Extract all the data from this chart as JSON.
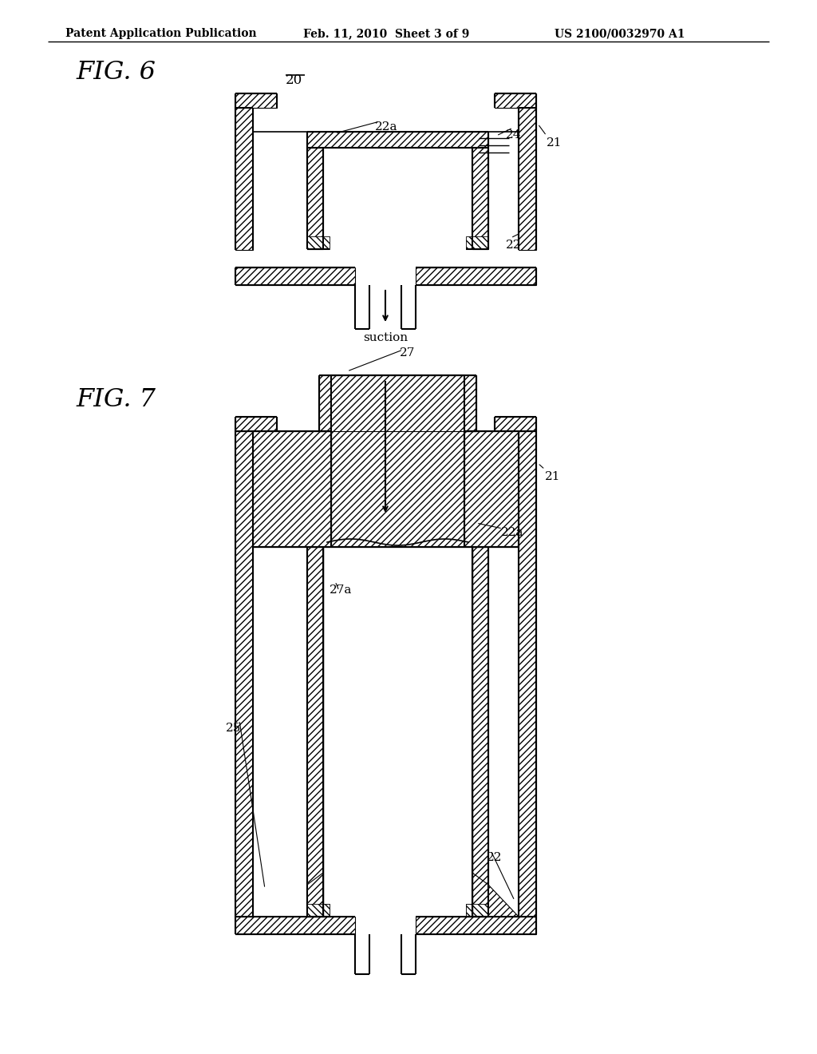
{
  "bg_color": "#ffffff",
  "line_color": "#000000",
  "header_left": "Patent Application Publication",
  "header_center": "Feb. 11, 2010  Sheet 3 of 9",
  "header_right": "US 2100/0032970 A1",
  "fig6_label": "FIG. 6",
  "fig7_label": "FIG. 7",
  "label_20": "20",
  "label_21_fig6": "21",
  "label_22_fig6": "22",
  "label_22a_fig6": "22a",
  "label_24_fig6": "24",
  "label_suction": "suction",
  "label_21_fig7": "21",
  "label_22_fig7": "22",
  "label_22a_fig7": "22a",
  "label_25_fig7": "25",
  "label_27_fig7": "27",
  "label_27a_fig7": "27a"
}
